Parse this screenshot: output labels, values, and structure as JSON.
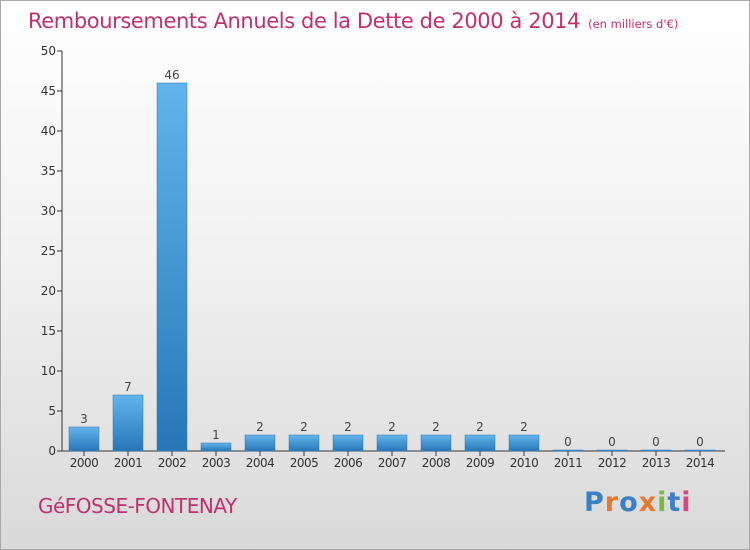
{
  "title": "Remboursements Annuels de la Dette de 2000 à 2014",
  "unit": "(en milliers d'€)",
  "commune": "GéFOSSE-FONTENAY",
  "logo": {
    "text": "Proxiti",
    "letter_colors": [
      "#3b7fc4",
      "#e7782e",
      "#3b7fc4",
      "#e7782e",
      "#7ab648",
      "#3b7fc4",
      "#d9428c"
    ]
  },
  "colors": {
    "title": "#c0306e",
    "bar_light": "#63b4ec",
    "bar_dark": "#2876b8"
  },
  "chart_data": {
    "type": "bar",
    "categories": [
      "2000",
      "2001",
      "2002",
      "2003",
      "2004",
      "2005",
      "2006",
      "2007",
      "2008",
      "2009",
      "2010",
      "2011",
      "2012",
      "2013",
      "2014"
    ],
    "values": [
      3,
      7,
      46,
      1,
      2,
      2,
      2,
      2,
      2,
      2,
      2,
      0,
      0,
      0,
      0
    ],
    "data_labels": [
      "3",
      "7",
      "46",
      "1",
      "2",
      "2",
      "2",
      "2",
      "2",
      "2",
      "2",
      "0",
      "0",
      "0",
      "0"
    ],
    "y_ticks": [
      0,
      5,
      10,
      15,
      20,
      25,
      30,
      35,
      40,
      45,
      50
    ],
    "ylim": [
      0,
      50
    ],
    "grid": false,
    "legend": "none"
  }
}
